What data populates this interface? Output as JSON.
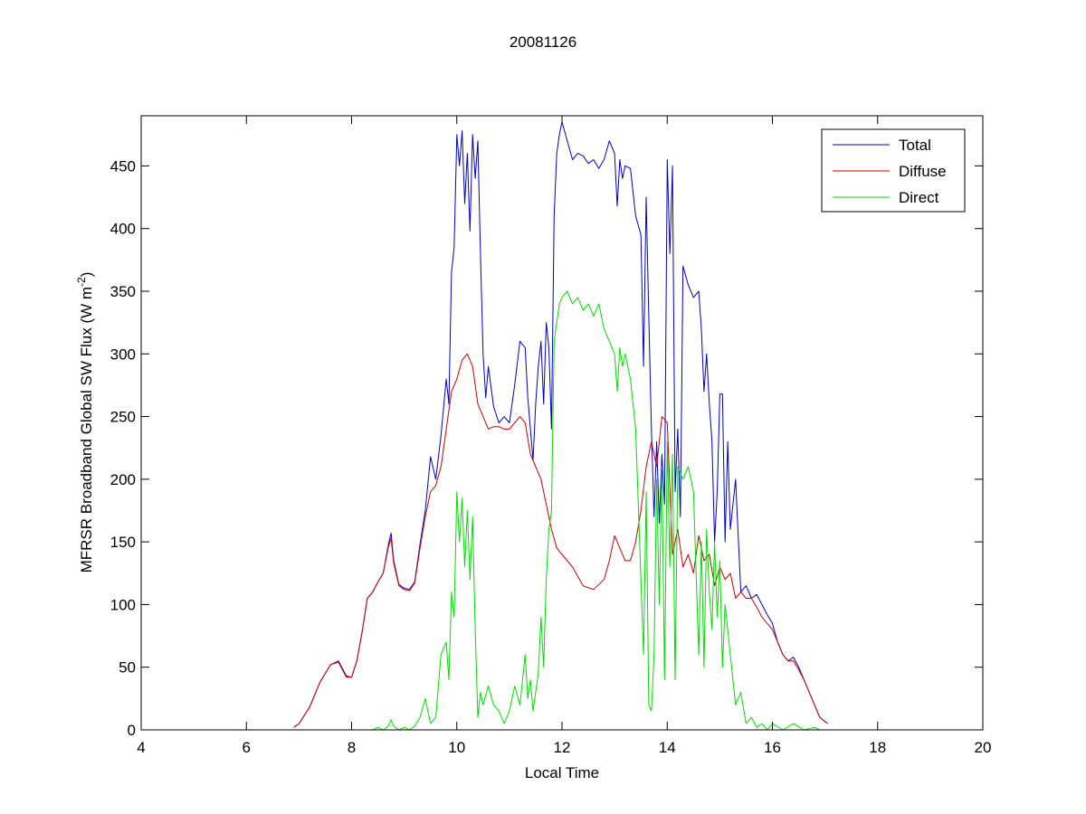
{
  "chart_data": {
    "type": "line",
    "title": "20081126",
    "xlabel": "Local Time",
    "ylabel_main": "MFRSR Broadband Global SW Flux (W m",
    "ylabel_sup": "-2",
    "ylabel_close": ")",
    "xlim": [
      4,
      20
    ],
    "ylim": [
      0,
      490
    ],
    "xticks": [
      4,
      6,
      8,
      10,
      12,
      14,
      16,
      18,
      20
    ],
    "xtick_labels": [
      "4",
      "6",
      "8",
      "10",
      "12",
      "14",
      "16",
      "18",
      "20"
    ],
    "yticks": [
      0,
      50,
      100,
      150,
      200,
      250,
      300,
      350,
      400,
      450
    ],
    "ytick_labels": [
      "0",
      "50",
      "100",
      "150",
      "200",
      "250",
      "300",
      "350",
      "400",
      "450"
    ],
    "grid": false,
    "legend_position": "top-right",
    "series": [
      {
        "name": "Total",
        "color": "#0000cc",
        "x": [
          6.9,
          7.0,
          7.2,
          7.4,
          7.6,
          7.75,
          7.9,
          8.0,
          8.1,
          8.2,
          8.3,
          8.4,
          8.5,
          8.6,
          8.7,
          8.75,
          8.8,
          8.9,
          9.0,
          9.1,
          9.2,
          9.3,
          9.4,
          9.5,
          9.6,
          9.7,
          9.8,
          9.85,
          9.9,
          9.95,
          10.0,
          10.05,
          10.1,
          10.15,
          10.2,
          10.25,
          10.3,
          10.35,
          10.4,
          10.45,
          10.5,
          10.55,
          10.6,
          10.7,
          10.8,
          10.9,
          11.0,
          11.1,
          11.2,
          11.3,
          11.35,
          11.4,
          11.45,
          11.5,
          11.55,
          11.6,
          11.65,
          11.7,
          11.75,
          11.8,
          11.85,
          11.9,
          11.95,
          12.0,
          12.1,
          12.2,
          12.3,
          12.4,
          12.5,
          12.6,
          12.7,
          12.8,
          12.9,
          13.0,
          13.05,
          13.1,
          13.15,
          13.2,
          13.3,
          13.4,
          13.5,
          13.55,
          13.6,
          13.65,
          13.7,
          13.75,
          13.8,
          13.85,
          13.9,
          13.95,
          14.0,
          14.05,
          14.1,
          14.15,
          14.2,
          14.25,
          14.3,
          14.4,
          14.5,
          14.6,
          14.65,
          14.7,
          14.75,
          14.8,
          14.85,
          14.9,
          14.95,
          15.0,
          15.05,
          15.1,
          15.15,
          15.2,
          15.3,
          15.4,
          15.5,
          15.6,
          15.7,
          15.8,
          15.9,
          16.0,
          16.1,
          16.2,
          16.3,
          16.4,
          16.5,
          16.6,
          16.7,
          16.8,
          16.9,
          17.05
        ],
        "values": [
          2,
          5,
          18,
          38,
          52,
          55,
          43,
          42,
          55,
          78,
          105,
          110,
          118,
          125,
          148,
          157,
          135,
          116,
          113,
          112,
          118,
          148,
          175,
          218,
          200,
          235,
          280,
          260,
          365,
          385,
          475,
          450,
          478,
          420,
          460,
          398,
          475,
          440,
          470,
          380,
          300,
          265,
          290,
          258,
          245,
          250,
          245,
          275,
          310,
          305,
          265,
          240,
          215,
          260,
          290,
          310,
          260,
          325,
          305,
          240,
          410,
          460,
          475,
          485,
          470,
          455,
          460,
          458,
          452,
          455,
          448,
          455,
          470,
          460,
          418,
          455,
          440,
          450,
          448,
          410,
          395,
          290,
          425,
          330,
          240,
          170,
          230,
          165,
          220,
          180,
          455,
          380,
          450,
          190,
          240,
          170,
          370,
          355,
          345,
          350,
          320,
          270,
          300,
          260,
          230,
          150,
          190,
          268,
          268,
          150,
          230,
          160,
          200,
          110,
          115,
          105,
          108,
          100,
          92,
          85,
          70,
          60,
          55,
          58,
          50,
          40,
          30,
          20,
          10,
          5
        ]
      },
      {
        "name": "Diffuse",
        "color": "#cc0000",
        "x": [
          6.9,
          7.0,
          7.2,
          7.4,
          7.6,
          7.75,
          7.9,
          8.0,
          8.1,
          8.2,
          8.3,
          8.4,
          8.5,
          8.6,
          8.7,
          8.75,
          8.8,
          8.9,
          9.0,
          9.1,
          9.2,
          9.3,
          9.4,
          9.5,
          9.6,
          9.7,
          9.8,
          9.9,
          10.0,
          10.1,
          10.2,
          10.3,
          10.4,
          10.5,
          10.6,
          10.7,
          10.8,
          10.9,
          11.0,
          11.1,
          11.2,
          11.3,
          11.4,
          11.5,
          11.6,
          11.7,
          11.8,
          11.9,
          12.0,
          12.2,
          12.4,
          12.6,
          12.8,
          12.9,
          13.0,
          13.1,
          13.2,
          13.3,
          13.4,
          13.5,
          13.6,
          13.7,
          13.8,
          13.9,
          14.0,
          14.1,
          14.2,
          14.3,
          14.4,
          14.5,
          14.6,
          14.7,
          14.8,
          14.9,
          15.0,
          15.1,
          15.2,
          15.3,
          15.4,
          15.5,
          15.6,
          15.7,
          15.8,
          15.9,
          16.0,
          16.1,
          16.2,
          16.3,
          16.4,
          16.5,
          16.6,
          16.7,
          16.8,
          16.9,
          17.05
        ],
        "values": [
          2,
          5,
          18,
          38,
          52,
          54,
          42,
          42,
          55,
          78,
          105,
          110,
          118,
          125,
          146,
          153,
          133,
          115,
          112,
          111,
          117,
          145,
          170,
          190,
          195,
          210,
          240,
          270,
          280,
          295,
          300,
          290,
          260,
          250,
          240,
          242,
          242,
          240,
          240,
          245,
          250,
          245,
          220,
          210,
          200,
          180,
          160,
          145,
          140,
          130,
          115,
          112,
          120,
          135,
          155,
          145,
          135,
          135,
          150,
          175,
          210,
          230,
          210,
          250,
          245,
          140,
          160,
          130,
          140,
          125,
          155,
          135,
          140,
          115,
          130,
          120,
          125,
          105,
          110,
          105,
          105,
          98,
          90,
          85,
          80,
          70,
          60,
          55,
          55,
          48,
          40,
          30,
          20,
          10,
          5
        ]
      },
      {
        "name": "Direct",
        "color": "#00dd00",
        "x": [
          6.9,
          7.5,
          8.0,
          8.4,
          8.5,
          8.6,
          8.7,
          8.75,
          8.8,
          8.9,
          9.0,
          9.1,
          9.2,
          9.3,
          9.4,
          9.5,
          9.6,
          9.7,
          9.8,
          9.85,
          9.9,
          9.95,
          10.0,
          10.05,
          10.1,
          10.15,
          10.2,
          10.25,
          10.3,
          10.35,
          10.4,
          10.45,
          10.5,
          10.6,
          10.7,
          10.8,
          10.9,
          11.0,
          11.1,
          11.2,
          11.3,
          11.35,
          11.4,
          11.45,
          11.5,
          11.55,
          11.6,
          11.65,
          11.7,
          11.75,
          11.8,
          11.85,
          11.9,
          11.95,
          12.0,
          12.1,
          12.2,
          12.3,
          12.4,
          12.5,
          12.6,
          12.7,
          12.8,
          12.9,
          13.0,
          13.05,
          13.1,
          13.15,
          13.2,
          13.3,
          13.4,
          13.5,
          13.55,
          13.6,
          13.65,
          13.7,
          13.75,
          13.8,
          13.85,
          13.9,
          13.95,
          14.0,
          14.05,
          14.1,
          14.15,
          14.2,
          14.3,
          14.4,
          14.5,
          14.6,
          14.65,
          14.7,
          14.75,
          14.8,
          14.85,
          14.9,
          14.95,
          15.0,
          15.05,
          15.1,
          15.2,
          15.3,
          15.4,
          15.5,
          15.6,
          15.7,
          15.8,
          15.9,
          16.0,
          16.2,
          16.4,
          16.6,
          16.8,
          16.9
        ],
        "values": [
          0,
          0,
          0,
          0,
          2,
          0,
          3,
          8,
          3,
          0,
          2,
          0,
          3,
          10,
          25,
          5,
          10,
          60,
          70,
          40,
          110,
          90,
          190,
          150,
          185,
          130,
          175,
          120,
          170,
          80,
          10,
          30,
          20,
          35,
          20,
          15,
          5,
          15,
          35,
          20,
          60,
          25,
          40,
          15,
          30,
          45,
          90,
          50,
          120,
          160,
          175,
          310,
          325,
          340,
          345,
          350,
          340,
          345,
          335,
          340,
          330,
          340,
          320,
          310,
          300,
          270,
          305,
          290,
          300,
          280,
          240,
          120,
          60,
          190,
          20,
          15,
          60,
          200,
          100,
          210,
          40,
          230,
          130,
          220,
          40,
          210,
          200,
          210,
          190,
          60,
          150,
          50,
          160,
          110,
          80,
          150,
          90,
          135,
          50,
          100,
          60,
          20,
          30,
          5,
          10,
          2,
          5,
          0,
          5,
          0,
          5,
          0,
          2,
          0
        ]
      }
    ]
  }
}
